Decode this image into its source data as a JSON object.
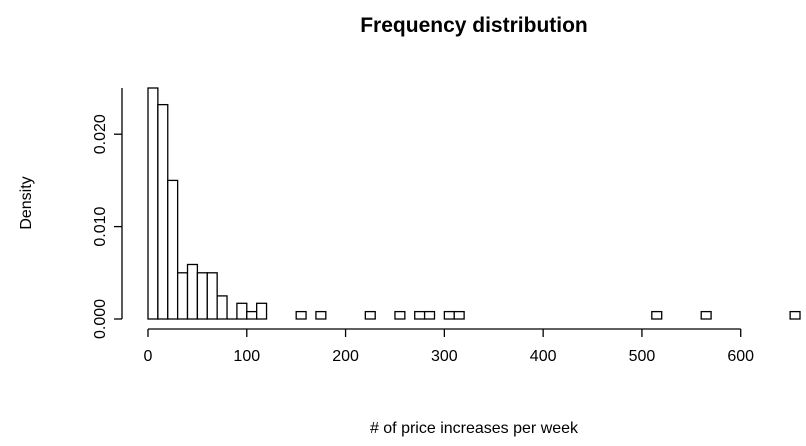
{
  "chart_data": {
    "type": "bar",
    "title": "Frequency distribution",
    "xlabel": "# of price increases per week",
    "ylabel": "Density",
    "bin_width": 10,
    "xlim": [
      0,
      660
    ],
    "ylim": [
      0,
      0.025
    ],
    "x_ticks": [
      0,
      100,
      200,
      300,
      400,
      500,
      600
    ],
    "y_ticks": [
      0.0,
      0.01,
      0.02
    ],
    "y_tick_labels": [
      "0.000",
      "0.010",
      "0.020"
    ],
    "bins": [
      {
        "x0": 0,
        "x1": 10,
        "density": 0.025
      },
      {
        "x0": 10,
        "x1": 20,
        "density": 0.0232
      },
      {
        "x0": 20,
        "x1": 30,
        "density": 0.015
      },
      {
        "x0": 30,
        "x1": 40,
        "density": 0.005
      },
      {
        "x0": 40,
        "x1": 50,
        "density": 0.0059
      },
      {
        "x0": 50,
        "x1": 60,
        "density": 0.005
      },
      {
        "x0": 60,
        "x1": 70,
        "density": 0.005
      },
      {
        "x0": 70,
        "x1": 80,
        "density": 0.0025
      },
      {
        "x0": 80,
        "x1": 90,
        "density": 0.0
      },
      {
        "x0": 90,
        "x1": 100,
        "density": 0.0017
      },
      {
        "x0": 100,
        "x1": 110,
        "density": 0.0008
      },
      {
        "x0": 110,
        "x1": 120,
        "density": 0.0017
      },
      {
        "x0": 150,
        "x1": 160,
        "density": 0.0008
      },
      {
        "x0": 170,
        "x1": 180,
        "density": 0.0008
      },
      {
        "x0": 220,
        "x1": 230,
        "density": 0.0008
      },
      {
        "x0": 250,
        "x1": 260,
        "density": 0.0008
      },
      {
        "x0": 270,
        "x1": 280,
        "density": 0.0008
      },
      {
        "x0": 280,
        "x1": 290,
        "density": 0.0008
      },
      {
        "x0": 300,
        "x1": 310,
        "density": 0.0008
      },
      {
        "x0": 310,
        "x1": 320,
        "density": 0.0008
      },
      {
        "x0": 510,
        "x1": 520,
        "density": 0.0008
      },
      {
        "x0": 560,
        "x1": 570,
        "density": 0.0008
      },
      {
        "x0": 650,
        "x1": 660,
        "density": 0.0008
      }
    ]
  }
}
